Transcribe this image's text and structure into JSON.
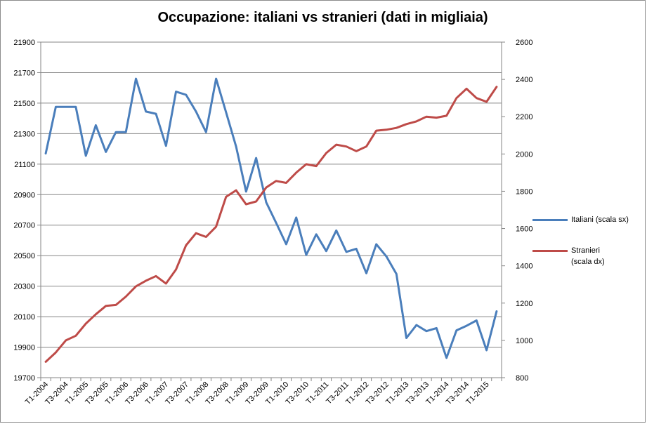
{
  "chart_data": {
    "type": "line",
    "title": "Occupazione:  italiani vs stranieri (dati in migliaia)",
    "xlabel": "",
    "ylabel": "",
    "grid": true,
    "legend_position": "right",
    "categories": [
      "T1-2004",
      "T2-2004",
      "T3-2004",
      "T4-2004",
      "T1-2005",
      "T2-2005",
      "T3-2005",
      "T4-2005",
      "T1-2006",
      "T2-2006",
      "T3-2006",
      "T4-2006",
      "T1-2007",
      "T2-2007",
      "T3-2007",
      "T4-2007",
      "T1-2008",
      "T2-2008",
      "T3-2008",
      "T4-2008",
      "T1-2009",
      "T2-2009",
      "T3-2009",
      "T4-2009",
      "T1-2010",
      "T2-2010",
      "T3-2010",
      "T4-2010",
      "T1-2011",
      "T2-2011",
      "T3-2011",
      "T4-2011",
      "T1-2012",
      "T2-2012",
      "T3-2012",
      "T4-2012",
      "T1-2013",
      "T2-2013",
      "T3-2013",
      "T4-2013",
      "T1-2014",
      "T2-2014",
      "T3-2014",
      "T4-2014",
      "T1-2015",
      "T2-2015"
    ],
    "tick_labels": [
      "T1-2004",
      "T3-2004",
      "T1-2005",
      "T3-2005",
      "T1-2006",
      "T3-2006",
      "T1-2007",
      "T3-2007",
      "T1-2008",
      "T3-2008",
      "T1-2009",
      "T3-2009",
      "T1-2010",
      "T3-2010",
      "T1-2011",
      "T3-2011",
      "T1-2012",
      "T3-2012",
      "T1-2013",
      "T3-2013",
      "T1-2014",
      "T3-2014",
      "T1-2015"
    ],
    "left_axis": {
      "min": 19700,
      "max": 21900,
      "ticks": [
        19700,
        19900,
        20100,
        20300,
        20500,
        20700,
        20900,
        21100,
        21300,
        21500,
        21700,
        21900
      ]
    },
    "right_axis": {
      "min": 800,
      "max": 2600,
      "ticks": [
        800,
        1000,
        1200,
        1400,
        1600,
        1800,
        2000,
        2200,
        2400,
        2600
      ]
    },
    "series": [
      {
        "name": "Italiani (scala sx)",
        "axis": "left",
        "color": "#4a7ebb",
        "values": [
          21170,
          21475,
          21475,
          21475,
          21155,
          21355,
          21180,
          21310,
          21310,
          21660,
          21445,
          21430,
          21220,
          21575,
          21555,
          21445,
          21310,
          21660,
          21440,
          21215,
          20920,
          21140,
          20850,
          20715,
          20575,
          20750,
          20505,
          20640,
          20530,
          20665,
          20525,
          20545,
          20385,
          20575,
          20495,
          20380,
          19960,
          20045,
          20005,
          20025,
          19830,
          20010,
          20040,
          20075,
          19880,
          20135
        ]
      },
      {
        "name": "Stranieri (scala dx)",
        "axis": "right",
        "color": "#be4b48",
        "values": [
          885,
          935,
          1000,
          1025,
          1090,
          1140,
          1185,
          1190,
          1235,
          1290,
          1320,
          1345,
          1305,
          1380,
          1510,
          1575,
          1555,
          1610,
          1770,
          1805,
          1730,
          1745,
          1820,
          1855,
          1845,
          1900,
          1945,
          1935,
          2005,
          2050,
          2040,
          2015,
          2040,
          2125,
          2130,
          2140,
          2160,
          2175,
          2200,
          2195,
          2205,
          2300,
          2350,
          2300,
          2280,
          2360
        ]
      }
    ]
  }
}
